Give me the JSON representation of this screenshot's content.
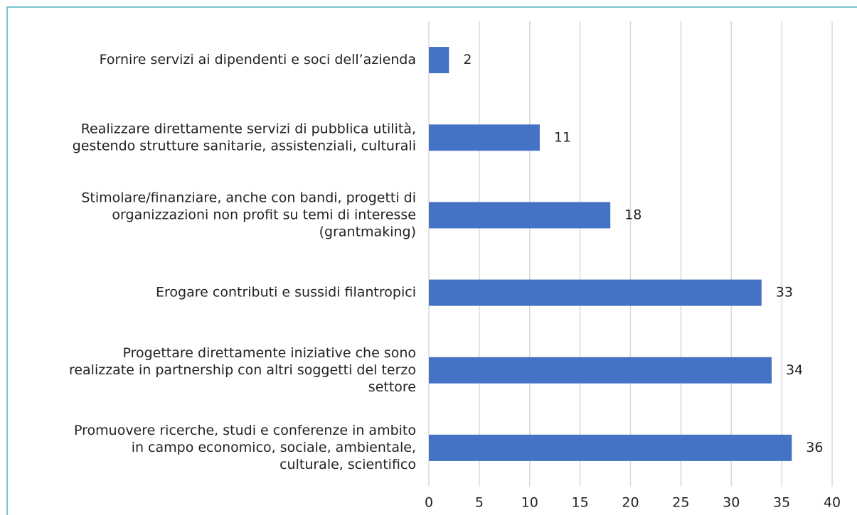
{
  "chart_data": {
    "type": "bar",
    "orientation": "horizontal",
    "categories": [
      [
        "Fornire servizi ai dipendenti e soci dell’azienda"
      ],
      [
        "Realizzare direttamente servizi di pubblica utilità,",
        "gestendo strutture sanitarie, assistenziali, culturali"
      ],
      [
        "Stimolare/finanziare, anche con bandi, progetti di",
        "organizzazioni non profit su temi di interesse",
        "(grantmaking)"
      ],
      [
        "Erogare contributi e sussidi filantropici"
      ],
      [
        "Progettare direttamente iniziative che sono",
        "realizzate in partnership con altri soggetti del terzo",
        "settore"
      ],
      [
        "Promuovere ricerche, studi e conferenze in ambito",
        "in campo economico, sociale, ambientale,",
        "culturale, scientifico"
      ]
    ],
    "values": [
      2,
      11,
      18,
      33,
      34,
      36
    ],
    "color": "#4472c4",
    "xlim": [
      0,
      40
    ],
    "xticks": [
      0,
      5,
      10,
      15,
      20,
      25,
      30,
      35,
      40
    ],
    "grid": true
  }
}
